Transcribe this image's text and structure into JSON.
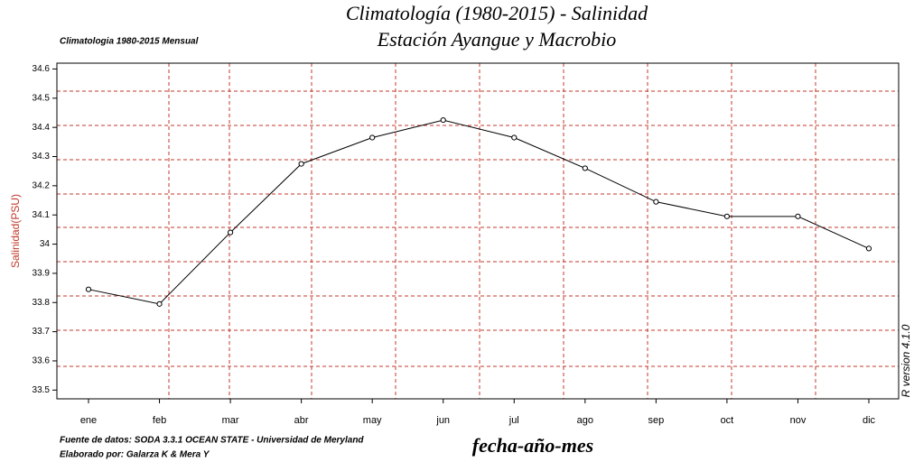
{
  "chart_data": {
    "type": "line",
    "title": "Climatología (1980-2015) - Salinidad",
    "title_line2": "Estación Ayangue y Macrobio",
    "subtitle": "Climatologia 1980-2015 Mensual",
    "y_label": "Salinidad(PSU)",
    "x_label": "fecha-año-mes",
    "source": "Fuente de datos: SODA 3.3.1 OCEAN STATE - Universidad de Meryland",
    "credit": "Elaborado por: Galarza K & Mera Y",
    "side_note": "R version 4.1.0",
    "categories": [
      "ene",
      "feb",
      "mar",
      "abr",
      "may",
      "jun",
      "jul",
      "ago",
      "sep",
      "oct",
      "nov",
      "dic"
    ],
    "values": [
      33.845,
      33.795,
      34.04,
      34.275,
      34.365,
      34.425,
      34.365,
      34.26,
      34.145,
      34.095,
      34.095,
      33.985
    ],
    "color": "#000000",
    "ylim": [
      33.47,
      34.62
    ],
    "yticks": [
      33.5,
      33.6,
      33.7,
      33.8,
      33.9,
      34,
      34.1,
      34.2,
      34.3,
      34.4,
      34.5,
      34.6
    ],
    "grid": true
  }
}
